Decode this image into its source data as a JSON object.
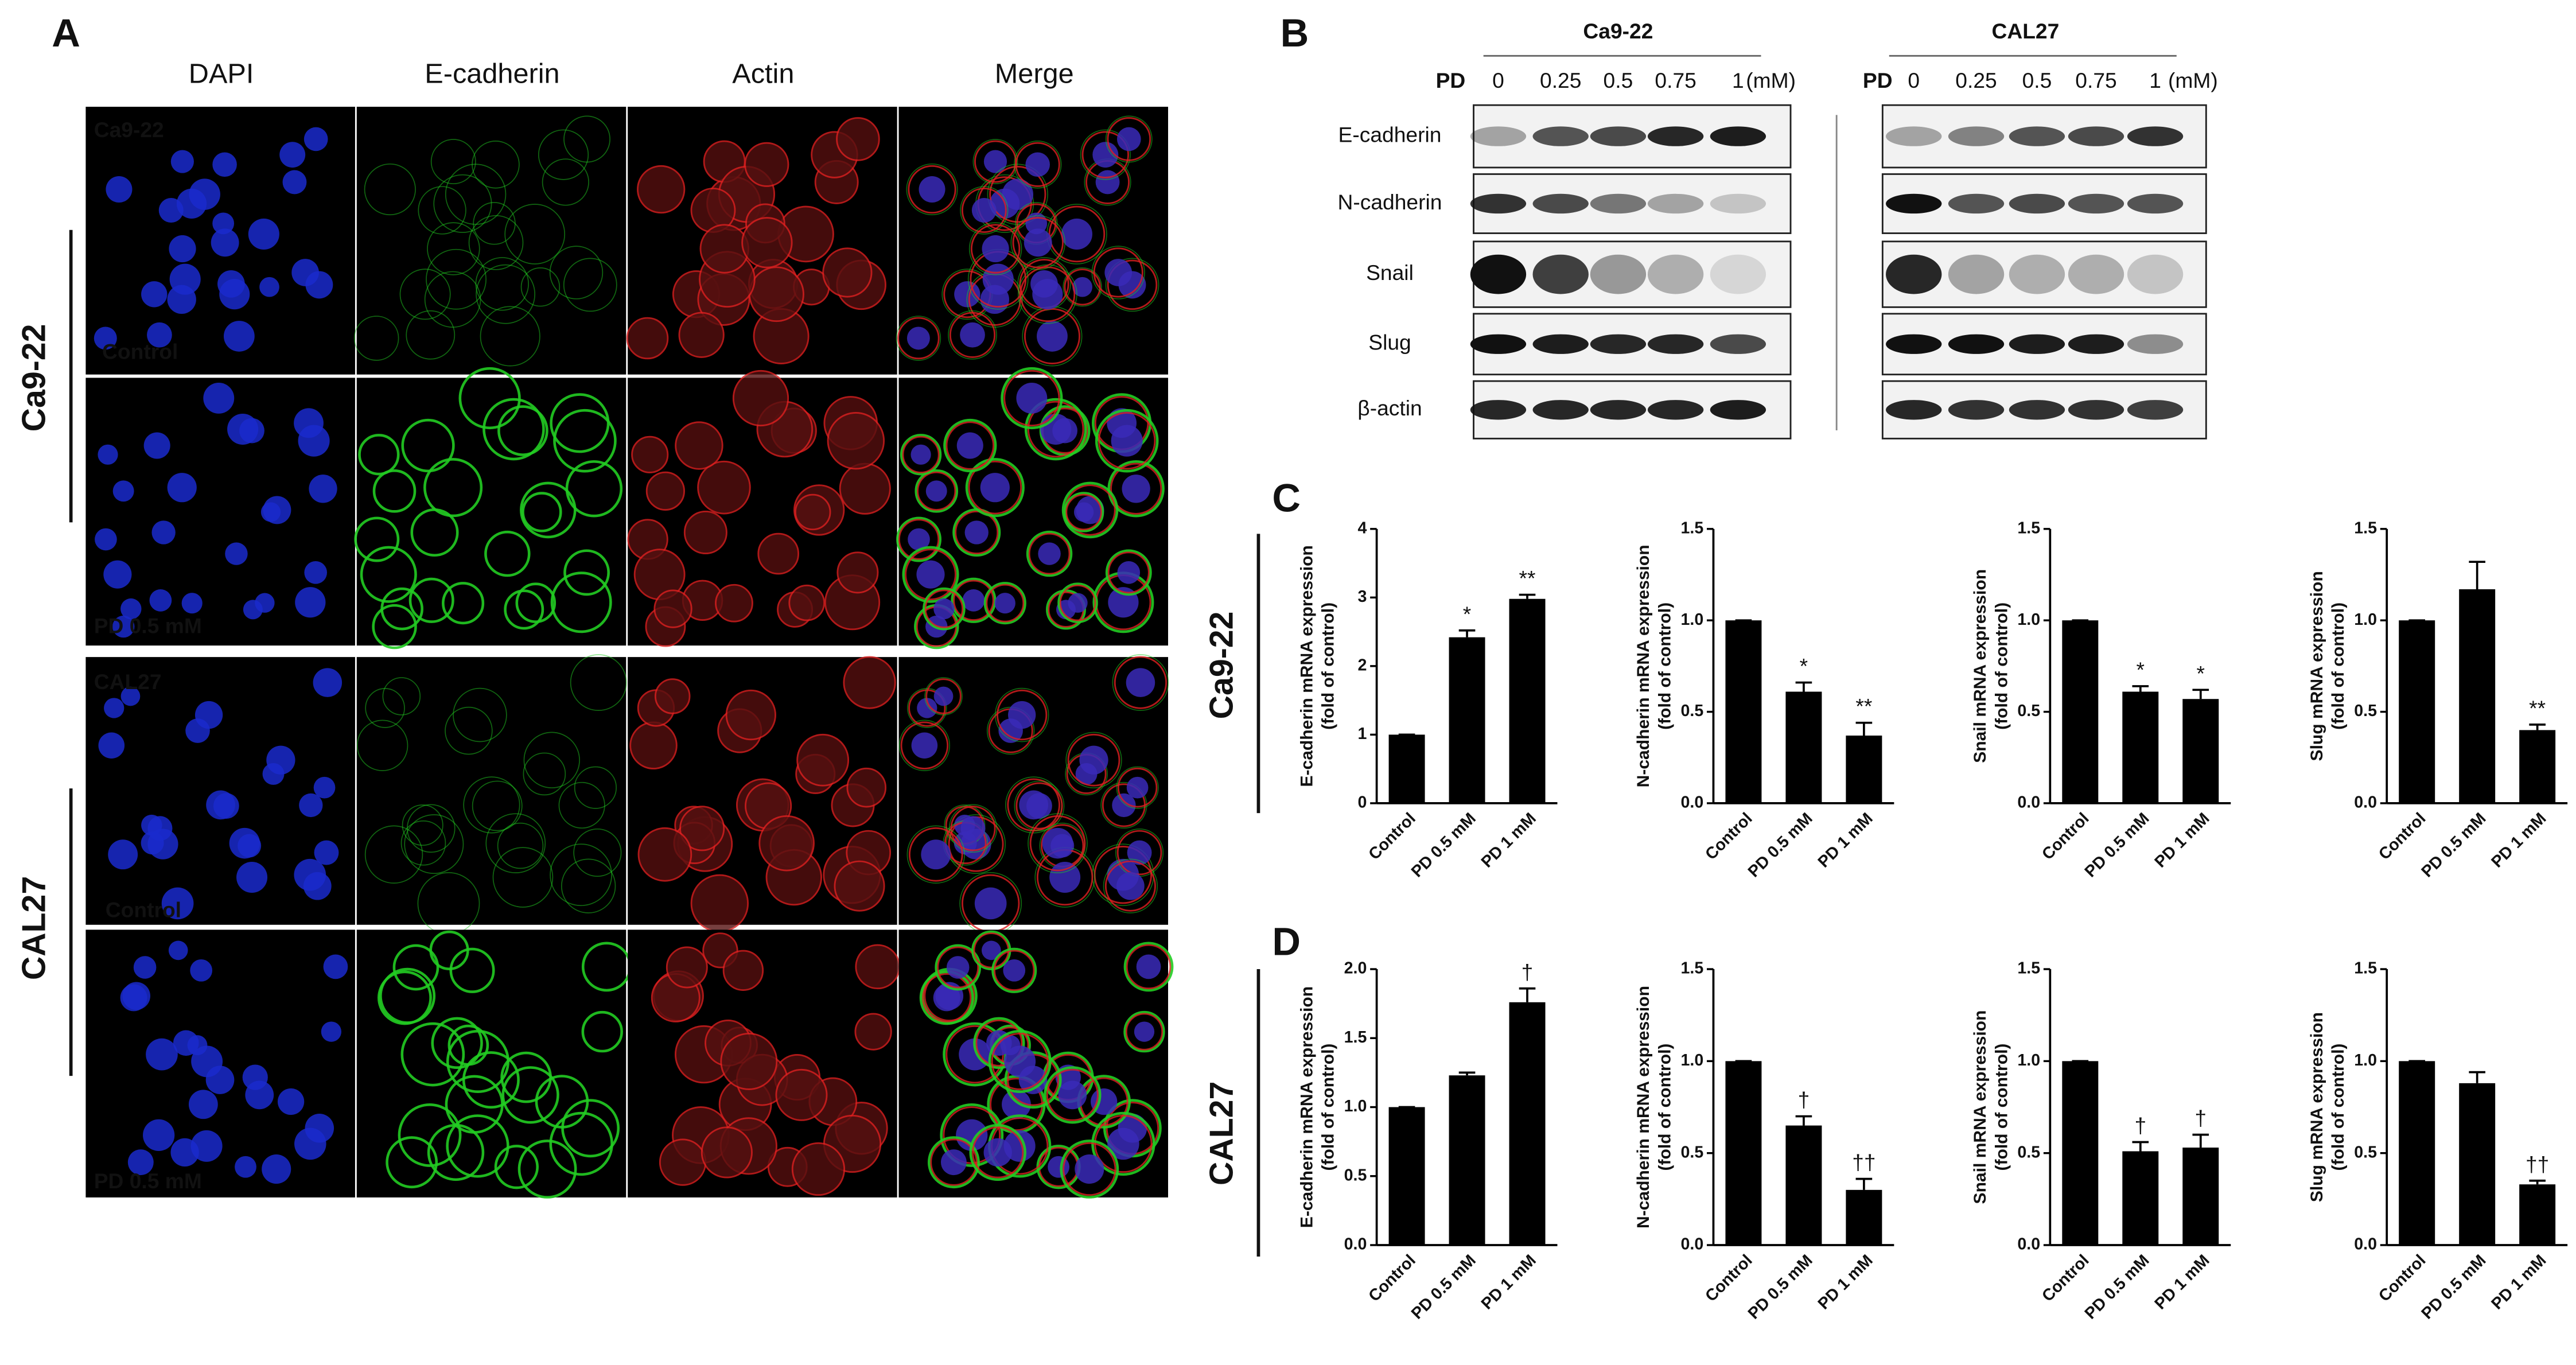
{
  "cell_lines": [
    "Ca9-22",
    "CAL27"
  ],
  "panel_a": {
    "label": "A",
    "columns": [
      "DAPI",
      "E-cadherin",
      "Actin",
      "Merge"
    ],
    "conditions": [
      "Control",
      "PD 0.5 mM"
    ]
  },
  "panel_b": {
    "label": "B",
    "dose_label": "PD",
    "doses": [
      "0",
      "0.25",
      "0.5",
      "0.75",
      "1"
    ],
    "unit": "(mM)",
    "proteins": [
      "E-cadherin",
      "N-cadherin",
      "Snail",
      "Slug",
      "β-actin"
    ]
  },
  "panel_c": {
    "label": "C"
  },
  "panel_d": {
    "label": "D"
  },
  "chart_data": [
    {
      "type": "bar",
      "y_label": [
        "E-cadherin mRNA expression",
        "(fold of control)"
      ],
      "categories": [
        "Control",
        "PD 0.5 mM",
        "PD 1 mM"
      ],
      "values": [
        1,
        2.42,
        2.98
      ],
      "errors": [
        0,
        0.1,
        0.06
      ],
      "significance": [
        null,
        "*",
        "**"
      ],
      "color": "#000000",
      "ylim": [
        0,
        4
      ],
      "yticks": [
        0,
        1,
        2,
        3,
        4
      ]
    },
    {
      "type": "bar",
      "y_label": [
        "N-cadherin mRNA expression",
        "(fold of control)"
      ],
      "categories": [
        "Control",
        "PD 0.5 mM",
        "PD 1 mM"
      ],
      "values": [
        1,
        0.61,
        0.37
      ],
      "errors": [
        0,
        0.05,
        0.07
      ],
      "significance": [
        null,
        "*",
        "**"
      ],
      "color": "#000000",
      "ylim": [
        0,
        1.5
      ],
      "yticks": [
        {
          "value": 0,
          "label": "0.0"
        },
        0.5,
        {
          "value": 1,
          "label": "1.0"
        },
        1.5
      ]
    },
    {
      "type": "bar",
      "y_label": [
        "Snail mRNA expression",
        "(fold of control)"
      ],
      "categories": [
        "Control",
        "PD 0.5 mM",
        "PD 1 mM"
      ],
      "values": [
        1,
        0.61,
        0.57
      ],
      "errors": [
        0,
        0.03,
        0.05
      ],
      "significance": [
        null,
        "*",
        "*"
      ],
      "color": "#000000",
      "ylim": [
        0,
        1.5
      ],
      "yticks": [
        {
          "value": 0,
          "label": "0.0"
        },
        0.5,
        {
          "value": 1,
          "label": "1.0"
        },
        1.5
      ]
    },
    {
      "type": "bar",
      "y_label": [
        "Slug mRNA expression",
        "(fold of control)"
      ],
      "categories": [
        "Control",
        "PD 0.5 mM",
        "PD 1 mM"
      ],
      "values": [
        1,
        1.17,
        0.4
      ],
      "errors": [
        0,
        0.15,
        0.03
      ],
      "significance": [
        null,
        null,
        "**"
      ],
      "color": "#000000",
      "ylim": [
        0,
        1.5
      ],
      "yticks": [
        {
          "value": 0,
          "label": "0.0"
        },
        0.5,
        {
          "value": 1,
          "label": "1.0"
        },
        1.5
      ]
    },
    {
      "type": "bar",
      "y_label": [
        "E-cadherin mRNA expression",
        "(fold of control)"
      ],
      "categories": [
        "Control",
        "PD 0.5 mM",
        "PD 1 mM"
      ],
      "values": [
        1,
        1.23,
        1.76
      ],
      "errors": [
        0,
        0.02,
        0.1
      ],
      "significance": [
        null,
        null,
        "†"
      ],
      "color": "#000000",
      "ylim": [
        0,
        2
      ],
      "yticks": [
        {
          "value": 0,
          "label": "0.0"
        },
        0.5,
        {
          "value": 1,
          "label": "1.0"
        },
        1.5,
        {
          "value": 2,
          "label": "2.0"
        }
      ]
    },
    {
      "type": "bar",
      "y_label": [
        "N-cadherin mRNA expression",
        "(fold of control)"
      ],
      "categories": [
        "Control",
        "PD 0.5 mM",
        "PD 1 mM"
      ],
      "values": [
        1,
        0.65,
        0.3
      ],
      "errors": [
        0,
        0.05,
        0.06
      ],
      "significance": [
        null,
        "†",
        "††"
      ],
      "color": "#000000",
      "ylim": [
        0,
        1.5
      ],
      "yticks": [
        {
          "value": 0,
          "label": "0.0"
        },
        0.5,
        {
          "value": 1,
          "label": "1.0"
        },
        1.5
      ]
    },
    {
      "type": "bar",
      "y_label": [
        "Snail mRNA expression",
        "(fold of control)"
      ],
      "categories": [
        "Control",
        "PD 0.5 mM",
        "PD 1 mM"
      ],
      "values": [
        1,
        0.51,
        0.53
      ],
      "errors": [
        0,
        0.05,
        0.07
      ],
      "significance": [
        null,
        "†",
        "†"
      ],
      "color": "#000000",
      "ylim": [
        0,
        1.5
      ],
      "yticks": [
        {
          "value": 0,
          "label": "0.0"
        },
        0.5,
        {
          "value": 1,
          "label": "1.0"
        },
        1.5
      ]
    },
    {
      "type": "bar",
      "y_label": [
        "Slug mRNA expression",
        "(fold of control)"
      ],
      "categories": [
        "Control",
        "PD 0.5 mM",
        "PD 1 mM"
      ],
      "values": [
        1,
        0.88,
        0.33
      ],
      "errors": [
        0,
        0.06,
        0.02
      ],
      "significance": [
        null,
        null,
        "††"
      ],
      "color": "#000000",
      "ylim": [
        0,
        1.5
      ],
      "yticks": [
        {
          "value": 0,
          "label": "0.0"
        },
        0.5,
        {
          "value": 1,
          "label": "1.0"
        },
        1.5
      ]
    }
  ]
}
